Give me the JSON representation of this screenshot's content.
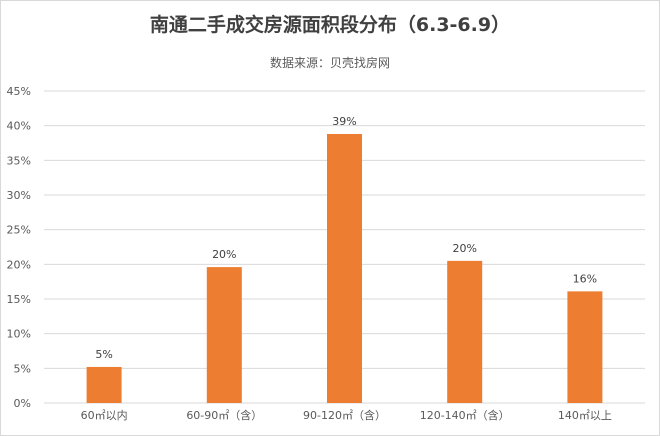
{
  "chart_data": {
    "type": "bar",
    "title": "南通二手成交房源面积段分布（6.3-6.9）",
    "subtitle": "数据来源：贝壳找房网",
    "categories": [
      "60㎡以内",
      "60-90㎡（含）",
      "90-120㎡（含）",
      "120-140㎡（含）",
      "140㎡以上"
    ],
    "values": [
      5,
      20,
      39,
      20,
      16
    ],
    "bar_values": [
      5.2,
      19.6,
      38.8,
      20.5,
      16.1
    ],
    "data_labels": [
      "5%",
      "20%",
      "39%",
      "20%",
      "16%"
    ],
    "y_ticks": [
      "0%",
      "5%",
      "10%",
      "15%",
      "20%",
      "25%",
      "30%",
      "35%",
      "40%",
      "45%"
    ],
    "ylim": [
      0,
      45
    ],
    "grid": true,
    "bar_color": "#ed7d31",
    "grid_color": "#d9d9d9"
  }
}
